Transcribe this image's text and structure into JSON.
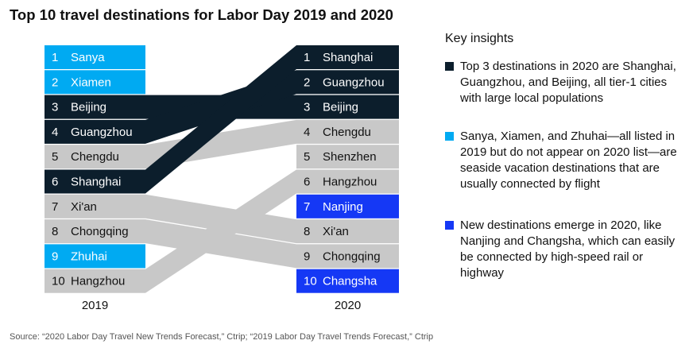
{
  "title": "Top 10 travel destinations for Labor Day 2019 and 2020",
  "colors": {
    "tier1": "#0c1e2c",
    "seaside": "#00aaf2",
    "new": "#1538f5",
    "other": "#c8c8c8"
  },
  "chart_data": {
    "type": "slope",
    "columns": [
      {
        "label": "2019",
        "items": [
          {
            "rank": "1",
            "city": "Sanya",
            "group": "seaside"
          },
          {
            "rank": "2",
            "city": "Xiamen",
            "group": "seaside"
          },
          {
            "rank": "3",
            "city": "Beijing",
            "group": "tier1"
          },
          {
            "rank": "4",
            "city": "Guangzhou",
            "group": "tier1"
          },
          {
            "rank": "5",
            "city": "Chengdu",
            "group": "other"
          },
          {
            "rank": "6",
            "city": "Shanghai",
            "group": "tier1"
          },
          {
            "rank": "7",
            "city": "Xi'an",
            "group": "other"
          },
          {
            "rank": "8",
            "city": "Chongqing",
            "group": "other"
          },
          {
            "rank": "9",
            "city": "Zhuhai",
            "group": "seaside"
          },
          {
            "rank": "10",
            "city": "Hangzhou",
            "group": "other"
          }
        ]
      },
      {
        "label": "2020",
        "items": [
          {
            "rank": "1",
            "city": "Shanghai",
            "group": "tier1"
          },
          {
            "rank": "2",
            "city": "Guangzhou",
            "group": "tier1"
          },
          {
            "rank": "3",
            "city": "Beijing",
            "group": "tier1"
          },
          {
            "rank": "4",
            "city": "Chengdu",
            "group": "other"
          },
          {
            "rank": "5",
            "city": "Shenzhen",
            "group": "other"
          },
          {
            "rank": "6",
            "city": "Hangzhou",
            "group": "other"
          },
          {
            "rank": "7",
            "city": "Nanjing",
            "group": "new"
          },
          {
            "rank": "8",
            "city": "Xi'an",
            "group": "other"
          },
          {
            "rank": "9",
            "city": "Chongqing",
            "group": "other"
          },
          {
            "rank": "10",
            "city": "Changsha",
            "group": "new"
          }
        ]
      }
    ],
    "links": [
      {
        "city": "Beijing",
        "from": 3,
        "to": 3,
        "group": "tier1"
      },
      {
        "city": "Guangzhou",
        "from": 4,
        "to": 2,
        "group": "tier1"
      },
      {
        "city": "Chengdu",
        "from": 5,
        "to": 4,
        "group": "other"
      },
      {
        "city": "Shanghai",
        "from": 6,
        "to": 1,
        "group": "tier1"
      },
      {
        "city": "Xi'an",
        "from": 7,
        "to": 8,
        "group": "other"
      },
      {
        "city": "Chongqing",
        "from": 8,
        "to": 9,
        "group": "other"
      },
      {
        "city": "Hangzhou",
        "from": 10,
        "to": 6,
        "group": "other"
      }
    ]
  },
  "insights": {
    "heading": "Key insights",
    "items": [
      {
        "group": "tier1",
        "text": "Top 3 destinations in 2020 are Shanghai, Guangzhou, and Beijing, all tier-1 cities with large local populations"
      },
      {
        "group": "seaside",
        "text": "Sanya, Xiamen, and Zhuhai—all listed in 2019 but do not appear on 2020 list—are seaside vacation destinations that are usually connected by flight"
      },
      {
        "group": "new",
        "text": "New destinations emerge in 2020, like Nanjing and Changsha, which can easily be connected by high-speed rail or highway"
      }
    ]
  },
  "source": "Source: “2020 Labor Day Travel New Trends Forecast,” Ctrip; “2019 Labor Day Travel Trends Forecast,” Ctrip"
}
